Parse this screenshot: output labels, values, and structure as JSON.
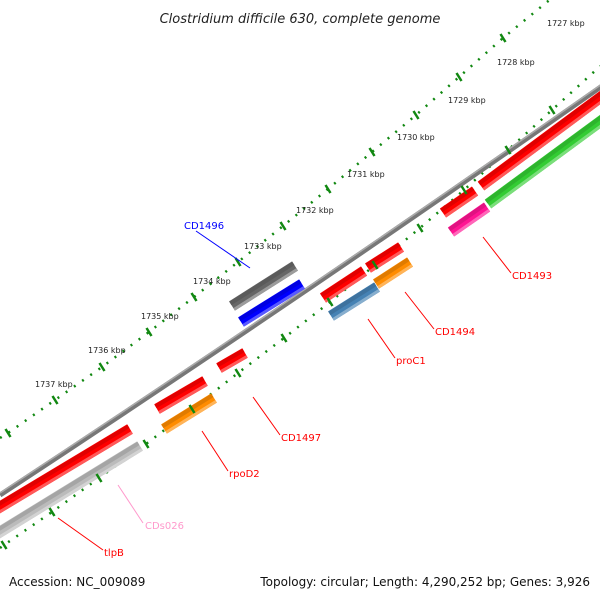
{
  "title": "Clostridium difficile 630, complete genome",
  "footer": {
    "accession": "Accession: NC_009089",
    "summary": "Topology: circular; Length: 4,290,252 bp; Genes: 3,926"
  },
  "ruler": [
    "1727 kbp",
    "1728 kbp",
    "1729 kbp",
    "1730 kbp",
    "1731 kbp",
    "1732 kbp",
    "1733 kbp",
    "1734 kbp",
    "1735 kbp",
    "1736 kbp",
    "1737 kbp"
  ],
  "labels": [
    {
      "text": "CD1496",
      "color": "#0000ff"
    },
    {
      "text": "CD1493",
      "color": "#ff0000"
    },
    {
      "text": "CD1494",
      "color": "#ff0000"
    },
    {
      "text": "proC1",
      "color": "#ff0000"
    },
    {
      "text": "CD1497",
      "color": "#ff0000"
    },
    {
      "text": "rpoD2",
      "color": "#ff0000"
    },
    {
      "text": "CDs026",
      "color": "#ff99cc"
    },
    {
      "text": "tlpB",
      "color": "#ff0000"
    }
  ],
  "colors": {
    "backbone": "#888888",
    "ticks": "#118811",
    "cds": "#ff0000",
    "orange": "#ff8c00",
    "steelblue": "#4682b4",
    "magenta": "#ff1493",
    "green": "#33cc33",
    "grey_dark": "#666666",
    "grey_light": "#bbbbbb",
    "blue": "#0000ff"
  }
}
